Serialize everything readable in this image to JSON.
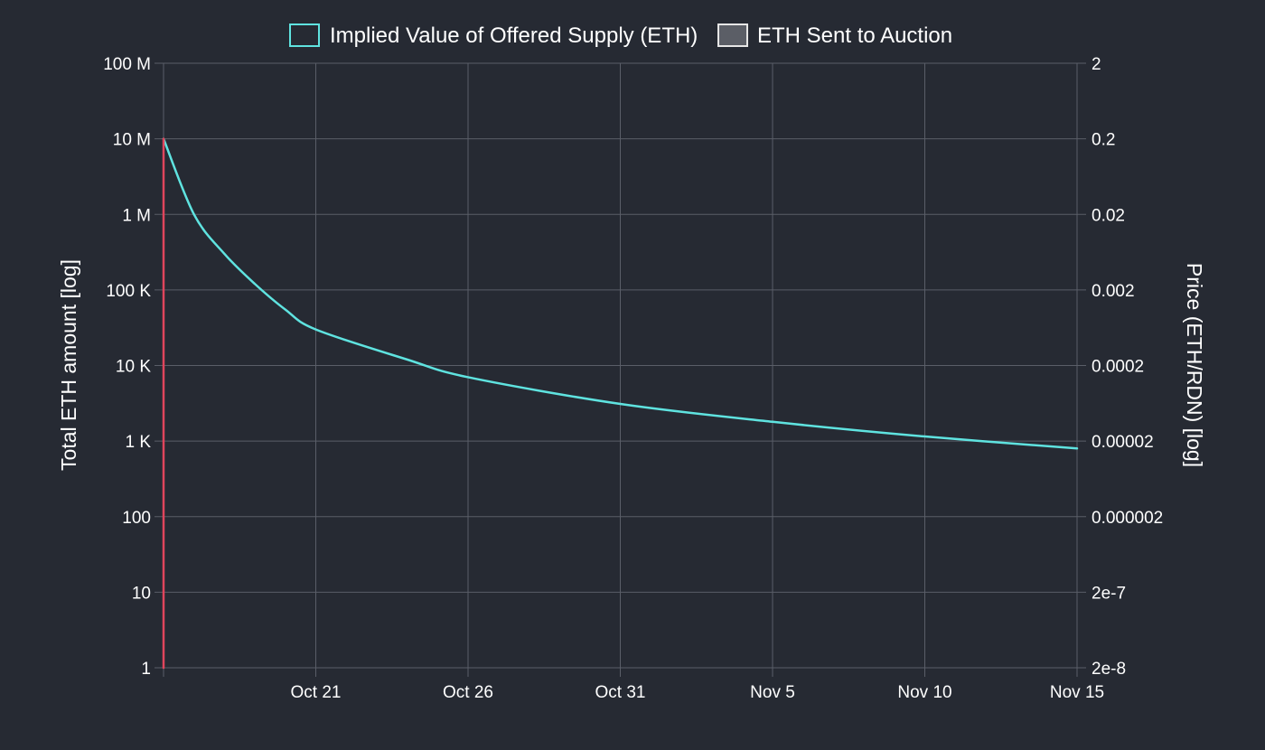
{
  "chart_data": {
    "type": "line",
    "legend": {
      "position": "top-center",
      "items": [
        {
          "label": "Implied Value of Offered Supply (ETH)",
          "color": "#5fe3e0",
          "fill": "#262a33"
        },
        {
          "label": "ETH Sent to Auction",
          "color": "#e6e6e6",
          "fill": "#5b5e66"
        }
      ]
    },
    "left_axis": {
      "label": "Total ETH amount [log]",
      "scale": "log",
      "range": [
        1,
        100000000
      ],
      "ticks": [
        {
          "value": 1,
          "label": "1"
        },
        {
          "value": 10,
          "label": "10"
        },
        {
          "value": 100,
          "label": "100"
        },
        {
          "value": 1000,
          "label": "1 K"
        },
        {
          "value": 10000,
          "label": "10 K"
        },
        {
          "value": 100000,
          "label": "100 K"
        },
        {
          "value": 1000000,
          "label": "1 M"
        },
        {
          "value": 10000000,
          "label": "10 M"
        },
        {
          "value": 100000000,
          "label": "100 M"
        }
      ]
    },
    "right_axis": {
      "label": "Price (ETH/RDN) [log]",
      "scale": "log",
      "range": [
        2e-08,
        2
      ],
      "ticks": [
        {
          "value": 2e-08,
          "label": "2e-8"
        },
        {
          "value": 2e-07,
          "label": "2e-7"
        },
        {
          "value": 2e-06,
          "label": "0.000002"
        },
        {
          "value": 2e-05,
          "label": "0.00002"
        },
        {
          "value": 0.0002,
          "label": "0.0002"
        },
        {
          "value": 0.002,
          "label": "0.002"
        },
        {
          "value": 0.02,
          "label": "0.02"
        },
        {
          "value": 0.2,
          "label": "0.2"
        },
        {
          "value": 2,
          "label": "2"
        }
      ]
    },
    "x_axis": {
      "range": [
        "2017-10-16",
        "2017-11-15"
      ],
      "ticks": [
        {
          "value": "2017-10-16",
          "label": ""
        },
        {
          "value": "2017-10-21",
          "label": "Oct 21"
        },
        {
          "value": "2017-10-26",
          "label": "Oct 26"
        },
        {
          "value": "2017-10-31",
          "label": "Oct 31"
        },
        {
          "value": "2017-11-05",
          "label": "Nov 5"
        },
        {
          "value": "2017-11-10",
          "label": "Nov 10"
        },
        {
          "value": "2017-11-15",
          "label": "Nov 15"
        }
      ]
    },
    "grid": true,
    "series": [
      {
        "name": "Implied Value of Offered Supply (ETH)",
        "axis": "left",
        "color": "#5fe3e0",
        "x": [
          "2017-10-16",
          "2017-10-17",
          "2017-10-18",
          "2017-10-19",
          "2017-10-20",
          "2017-10-21",
          "2017-10-24",
          "2017-10-26",
          "2017-10-31",
          "2017-11-05",
          "2017-11-10",
          "2017-11-15"
        ],
        "y": [
          10000000,
          1000000,
          300000,
          120000,
          55000,
          30000,
          12000,
          7000,
          3100,
          1800,
          1150,
          800
        ]
      },
      {
        "name": "ETH Sent to Auction",
        "axis": "left",
        "color": "#e0455c",
        "x": [
          "2017-10-16",
          "2017-10-16"
        ],
        "y": [
          1,
          10000000
        ]
      }
    ]
  }
}
